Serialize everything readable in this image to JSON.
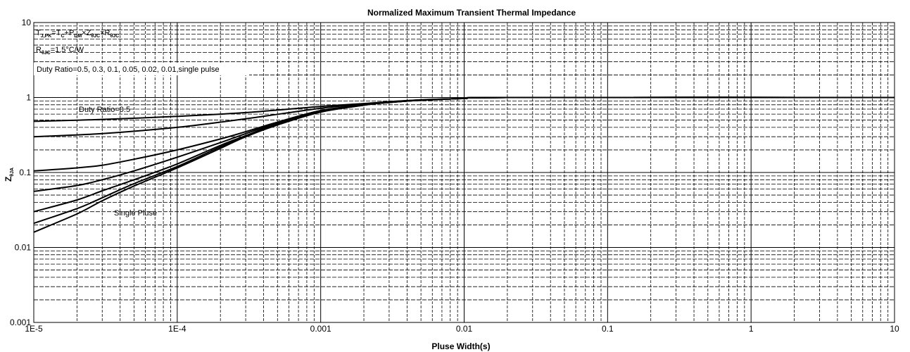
{
  "chart_data": {
    "type": "line",
    "title": "Normalized Maximum Transient Thermal Impedance",
    "xlabel": "Pluse Width(s)",
    "ylabel": {
      "main": "Z",
      "sub": "θJA"
    },
    "xscale": "log",
    "yscale": "log",
    "xlim": [
      1e-05,
      10
    ],
    "ylim": [
      0.001,
      10
    ],
    "x_tick_labels": [
      "1E-5",
      "1E-4",
      "0.001",
      "0.01",
      "0.1",
      "1",
      "10"
    ],
    "y_tick_labels": [
      "0.001",
      "0.01",
      "0.1",
      "1",
      "10"
    ],
    "grid": true,
    "annotations": {
      "formula": {
        "t1": "T",
        "s1": "J,PK",
        "t2": "=T",
        "s2": "C",
        "t3": "+P",
        "s3": "DM",
        "t4": "×Z",
        "s4": "θJC",
        "t5": "×R",
        "s5": "θJC"
      },
      "rthjc": {
        "t1": "R",
        "s1": "θJC",
        "t2": "=1.5°C/W"
      },
      "duty_list": "Duty Ratio=0.5, 0.3, 0.1, 0.05, 0.02, 0.01,single pulse",
      "duty_label": "Duty Ratio=0.5",
      "single_label": "Single Pluse"
    },
    "series": [
      {
        "x": [
          1e-05,
          3e-05,
          0.0001,
          0.0003,
          0.001,
          0.002,
          0.003,
          0.005,
          0.01,
          0.02,
          10
        ],
        "y": [
          0.48,
          0.51,
          0.56,
          0.63,
          0.76,
          0.83,
          0.88,
          0.93,
          0.97,
          1.0,
          1.0
        ]
      },
      {
        "x": [
          1e-05,
          3e-05,
          0.0001,
          0.0003,
          0.001,
          0.002,
          0.003,
          0.005,
          0.01,
          0.02,
          10
        ],
        "y": [
          0.3,
          0.33,
          0.4,
          0.52,
          0.72,
          0.82,
          0.87,
          0.93,
          0.97,
          1.0,
          1.0
        ]
      },
      {
        "x": [
          1e-05,
          2e-05,
          3e-05,
          5e-05,
          0.0001,
          0.0002,
          0.0003,
          0.0005,
          0.001,
          0.002,
          0.003,
          0.005,
          0.01,
          0.02,
          10
        ],
        "y": [
          0.105,
          0.115,
          0.125,
          0.15,
          0.2,
          0.28,
          0.35,
          0.47,
          0.67,
          0.8,
          0.86,
          0.92,
          0.97,
          1.0,
          1.0
        ]
      },
      {
        "x": [
          1e-05,
          2e-05,
          3e-05,
          5e-05,
          0.0001,
          0.0002,
          0.0003,
          0.0005,
          0.001,
          0.002,
          0.003,
          0.005,
          0.01,
          0.02,
          10
        ],
        "y": [
          0.056,
          0.067,
          0.08,
          0.105,
          0.16,
          0.25,
          0.33,
          0.46,
          0.66,
          0.8,
          0.86,
          0.92,
          0.97,
          1.0,
          1.0
        ]
      },
      {
        "x": [
          1e-05,
          2e-05,
          3e-05,
          5e-05,
          0.0001,
          0.0002,
          0.0003,
          0.0005,
          0.001,
          0.002,
          0.003,
          0.005,
          0.01,
          0.02,
          10
        ],
        "y": [
          0.03,
          0.043,
          0.057,
          0.08,
          0.13,
          0.23,
          0.31,
          0.45,
          0.65,
          0.8,
          0.86,
          0.92,
          0.97,
          1.0,
          1.0
        ]
      },
      {
        "x": [
          1e-05,
          2e-05,
          3e-05,
          5e-05,
          0.0001,
          0.0002,
          0.0003,
          0.0005,
          0.001,
          0.002,
          0.003,
          0.005,
          0.01,
          0.02,
          10
        ],
        "y": [
          0.021,
          0.033,
          0.046,
          0.071,
          0.12,
          0.22,
          0.3,
          0.44,
          0.64,
          0.79,
          0.86,
          0.92,
          0.97,
          1.0,
          1.0
        ]
      },
      {
        "x": [
          1e-05,
          2e-05,
          3e-05,
          5e-05,
          0.0001,
          0.0002,
          0.0003,
          0.0005,
          0.001,
          0.002,
          0.003,
          0.005,
          0.01,
          0.02,
          10
        ],
        "y": [
          0.016,
          0.028,
          0.042,
          0.066,
          0.115,
          0.21,
          0.3,
          0.43,
          0.64,
          0.79,
          0.86,
          0.92,
          0.97,
          1.0,
          1.0
        ]
      }
    ]
  }
}
